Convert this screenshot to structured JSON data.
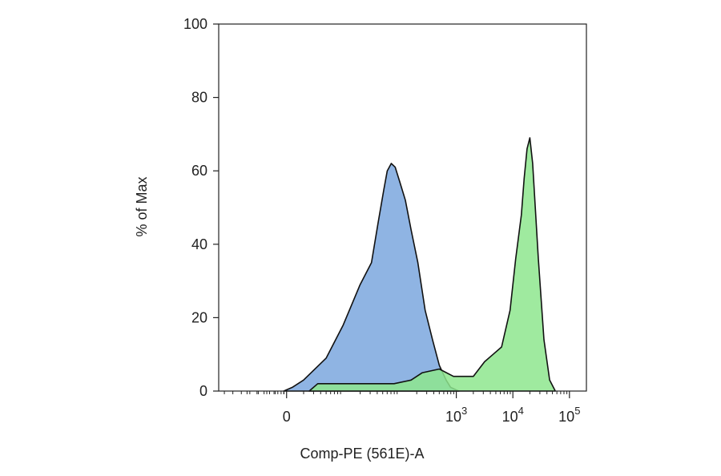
{
  "chart_data": {
    "type": "area",
    "title": "",
    "xlabel": "Comp-PE (561E)-A",
    "ylabel": "% of Max",
    "ylim": [
      0,
      100
    ],
    "x_scale": "biexponential",
    "xlim_exponent": [
      -1.2,
      5.3
    ],
    "y_ticks": [
      "0",
      "20",
      "40",
      "60",
      "80",
      "100"
    ],
    "y_tick_values": [
      0,
      20,
      40,
      60,
      80,
      100
    ],
    "x_ticks": [
      {
        "label": "0",
        "exponent": null,
        "value": 0
      },
      {
        "label": "10",
        "exponent": "3",
        "value": 3
      },
      {
        "label": "10",
        "exponent": "4",
        "value": 4
      },
      {
        "label": "10",
        "exponent": "5",
        "value": 5
      }
    ],
    "grid": false,
    "legend": "none",
    "series": [
      {
        "color": "#8fb4e3",
        "x_log": [
          -0.05,
          0.1,
          0.3,
          0.7,
          1.0,
          1.3,
          1.5,
          1.62,
          1.72,
          1.78,
          1.85,
          1.92,
          2.0,
          2.1,
          2.2,
          2.32,
          2.45,
          2.58,
          2.7,
          2.82,
          2.9,
          3.0,
          3.05
        ],
        "values": [
          0,
          1,
          3,
          9,
          18,
          29,
          35,
          46,
          55,
          60,
          62,
          61,
          57,
          52,
          44,
          35,
          22,
          14,
          7,
          3,
          1,
          0.3,
          0
        ]
      },
      {
        "color": "#8ee68e",
        "x_log": [
          0.4,
          0.55,
          1.0,
          1.9,
          2.2,
          2.4,
          2.7,
          2.95,
          3.1,
          3.3,
          3.5,
          3.65,
          3.8,
          3.95,
          4.05,
          4.15,
          4.2,
          4.25,
          4.3,
          4.35,
          4.45,
          4.55,
          4.65,
          4.75
        ],
        "values": [
          0,
          2,
          2,
          2,
          3,
          5,
          6,
          4,
          4,
          4,
          8,
          10,
          12,
          22,
          36,
          48,
          58,
          66,
          69,
          62,
          36,
          14,
          3,
          0
        ]
      }
    ]
  }
}
